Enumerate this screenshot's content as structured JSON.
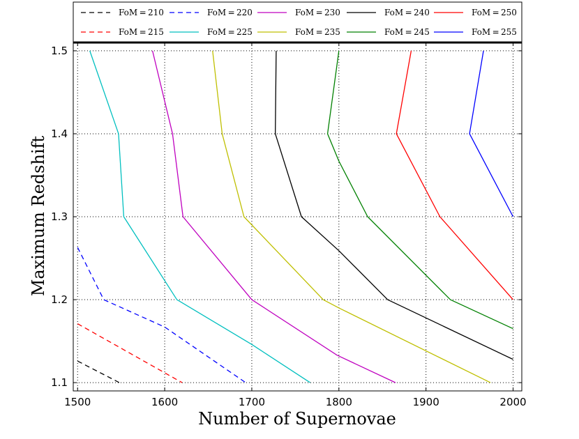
{
  "chart_data": {
    "type": "line",
    "title": "",
    "xlabel": "Number of Supernovae",
    "ylabel": "Maximum Redshift",
    "xlim": [
      1495,
      2010
    ],
    "ylim": [
      1.09,
      1.51
    ],
    "xticks": [
      1500,
      1600,
      1700,
      1800,
      1900,
      2000
    ],
    "xtick_labels": [
      "1500",
      "1600",
      "1700",
      "1800",
      "1900",
      "2000"
    ],
    "yticks": [
      1.1,
      1.2,
      1.3,
      1.4,
      1.5
    ],
    "ytick_labels": [
      "1.1",
      "1.2",
      "1.3",
      "1.4",
      "1.5"
    ],
    "grid": true,
    "legend_position": "top",
    "series": [
      {
        "name": "FoM = 210",
        "label": "FoM = 210",
        "color": "#000000",
        "style": "dashed",
        "x": [
          1500,
          1548
        ],
        "y": [
          1.126,
          1.1
        ]
      },
      {
        "name": "FoM = 215",
        "label": "FoM = 215",
        "color": "#ff0000",
        "style": "dashed",
        "x": [
          1500,
          1620
        ],
        "y": [
          1.171,
          1.1
        ]
      },
      {
        "name": "FoM = 220",
        "label": "FoM = 220",
        "color": "#0000ff",
        "style": "dashed",
        "x": [
          1500,
          1530,
          1600,
          1693
        ],
        "y": [
          1.263,
          1.2,
          1.167,
          1.1
        ]
      },
      {
        "name": "FoM = 225",
        "label": "FoM = 225",
        "color": "#00bfbf",
        "style": "solid",
        "x": [
          1514,
          1547,
          1553,
          1614,
          1700,
          1767
        ],
        "y": [
          1.5,
          1.4,
          1.3,
          1.2,
          1.146,
          1.1
        ]
      },
      {
        "name": "FoM = 230",
        "label": "FoM = 230",
        "color": "#bf00bf",
        "style": "solid",
        "x": [
          1586,
          1609,
          1621,
          1700,
          1798,
          1865
        ],
        "y": [
          1.5,
          1.4,
          1.3,
          1.2,
          1.133,
          1.1
        ]
      },
      {
        "name": "FoM = 235",
        "label": "FoM = 235",
        "color": "#bfbf00",
        "style": "solid",
        "x": [
          1655,
          1666,
          1691,
          1782,
          1800,
          1974
        ],
        "y": [
          1.5,
          1.4,
          1.3,
          1.2,
          1.19,
          1.1
        ]
      },
      {
        "name": "FoM = 240",
        "label": "FoM = 240",
        "color": "#000000",
        "style": "solid",
        "x": [
          1728,
          1727,
          1757,
          1800,
          1856,
          2000
        ],
        "y": [
          1.5,
          1.4,
          1.3,
          1.259,
          1.2,
          1.128
        ]
      },
      {
        "name": "FoM = 245",
        "label": "FoM = 245",
        "color": "#008000",
        "style": "solid",
        "x": [
          1800,
          1787,
          1800,
          1833,
          1928,
          2000
        ],
        "y": [
          1.5,
          1.4,
          1.367,
          1.3,
          1.2,
          1.165
        ]
      },
      {
        "name": "FoM = 250",
        "label": "FoM = 250",
        "color": "#ff0000",
        "style": "solid",
        "x": [
          1883,
          1866,
          1916,
          2000
        ],
        "y": [
          1.5,
          1.4,
          1.3,
          1.2
        ]
      },
      {
        "name": "FoM = 255",
        "label": "FoM = 255",
        "color": "#0000ff",
        "style": "solid",
        "x": [
          1966,
          1950,
          2000
        ],
        "y": [
          1.5,
          1.4,
          1.3
        ]
      }
    ],
    "legend_order": [
      [
        "FoM = 210",
        "FoM = 220",
        "FoM = 230",
        "FoM = 240",
        "FoM = 250"
      ],
      [
        "FoM = 215",
        "FoM = 225",
        "FoM = 235",
        "FoM = 245",
        "FoM = 255"
      ]
    ]
  }
}
